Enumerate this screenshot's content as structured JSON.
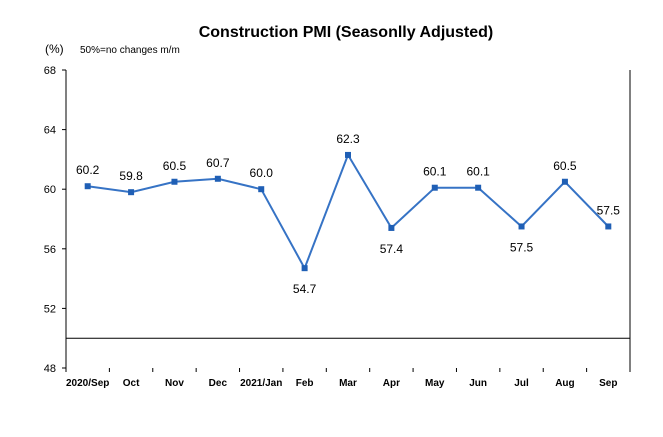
{
  "chart_data": {
    "type": "line",
    "title": "Construction PMI (Seasonlly Adjusted)",
    "ylabel": "(%)",
    "annotation": "50%=no changes  m/m",
    "categories": [
      "2020/Sep",
      "Oct",
      "Nov",
      "Dec",
      "2021/Jan",
      "Feb",
      "Mar",
      "Apr",
      "May",
      "Jun",
      "Jul",
      "Aug",
      "Sep"
    ],
    "series": [
      {
        "values": [
          60.2,
          59.8,
          60.5,
          60.7,
          60.0,
          54.7,
          62.3,
          57.4,
          60.1,
          60.1,
          57.5,
          60.5,
          57.5
        ]
      }
    ],
    "data_labels": [
      "60.2",
      "59.8",
      "60.5",
      "60.7",
      "60.0",
      "54.7",
      "62.3",
      "57.4",
      "60.1",
      "60.1",
      "57.5",
      "60.5",
      "57.5"
    ],
    "label_positions": [
      "above",
      "above",
      "above",
      "above",
      "above",
      "below",
      "above",
      "below",
      "above",
      "above",
      "below",
      "above",
      "above"
    ],
    "ylim": [
      48,
      68
    ],
    "yticks": [
      "48",
      "52",
      "56",
      "60",
      "64",
      "68"
    ],
    "reference_line": 50,
    "grid": false,
    "legend": "none",
    "colors": {
      "line": "#3673c5",
      "marker": "#1f5fb5",
      "axis": "#000000"
    }
  }
}
